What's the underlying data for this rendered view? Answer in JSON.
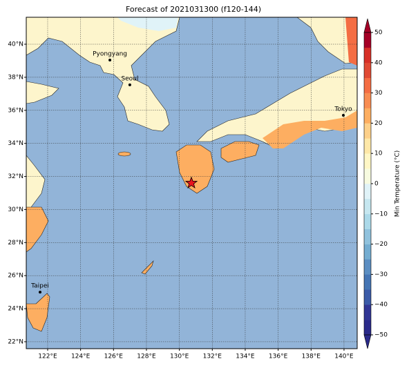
{
  "map": {
    "title": "Forecast of 2021031300 (f120-144)",
    "lonlim": [
      120.7,
      140.8
    ],
    "latlim": [
      21.58,
      41.63
    ],
    "lon_ticks": [
      {
        "value": 122,
        "label": "122°E"
      },
      {
        "value": 124,
        "label": "124°E"
      },
      {
        "value": 126,
        "label": "126°E"
      },
      {
        "value": 128,
        "label": "128°E"
      },
      {
        "value": 130,
        "label": "130°E"
      },
      {
        "value": 132,
        "label": "132°E"
      },
      {
        "value": 134,
        "label": "134°E"
      },
      {
        "value": 136,
        "label": "136°E"
      },
      {
        "value": 138,
        "label": "138°E"
      },
      {
        "value": 140,
        "label": "140°E"
      }
    ],
    "lat_ticks": [
      {
        "value": 22,
        "label": "22°N"
      },
      {
        "value": 24,
        "label": "24°N"
      },
      {
        "value": 26,
        "label": "26°N"
      },
      {
        "value": 28,
        "label": "28°N"
      },
      {
        "value": 30,
        "label": "30°N"
      },
      {
        "value": 32,
        "label": "32°N"
      },
      {
        "value": 34,
        "label": "34°N"
      },
      {
        "value": 36,
        "label": "36°N"
      },
      {
        "value": 38,
        "label": "38°N"
      },
      {
        "value": 40,
        "label": "40°N"
      }
    ],
    "grid": true,
    "cities": [
      {
        "name": "Pyongyang",
        "lon": 125.78,
        "lat": 39.04
      },
      {
        "name": "Seoul",
        "lon": 126.99,
        "lat": 37.54
      },
      {
        "name": "Tokyo",
        "lon": 139.96,
        "lat": 35.7
      },
      {
        "name": "Taipei",
        "lon": 121.54,
        "lat": 25.0
      }
    ],
    "marker": {
      "lon": 130.73,
      "lat": 31.6,
      "color": "#e8141e"
    },
    "colorbar": {
      "label": "Min Temperature (°C)",
      "lim": [
        -50,
        50
      ],
      "ticks": [
        {
          "value": -50,
          "label": "−50"
        },
        {
          "value": -40,
          "label": "−40"
        },
        {
          "value": -30,
          "label": "−30"
        },
        {
          "value": -20,
          "label": "−20"
        },
        {
          "value": -10,
          "label": "−10"
        },
        0,
        10,
        20,
        30,
        40,
        50
      ],
      "colors": [
        "#2a2a8a",
        "#313695",
        "#3b5ba8",
        "#4575b4",
        "#5b8ec2",
        "#74add1",
        "#90c2dd",
        "#abd9e9",
        "#c6e7f0",
        "#e0f3f8",
        "#f7fbe0",
        "#fff7c6",
        "#fee8a8",
        "#fdd08a",
        "#fdae61",
        "#f88d52",
        "#f46d43",
        "#e04a34",
        "#d73027",
        "#a50026"
      ]
    }
  }
}
